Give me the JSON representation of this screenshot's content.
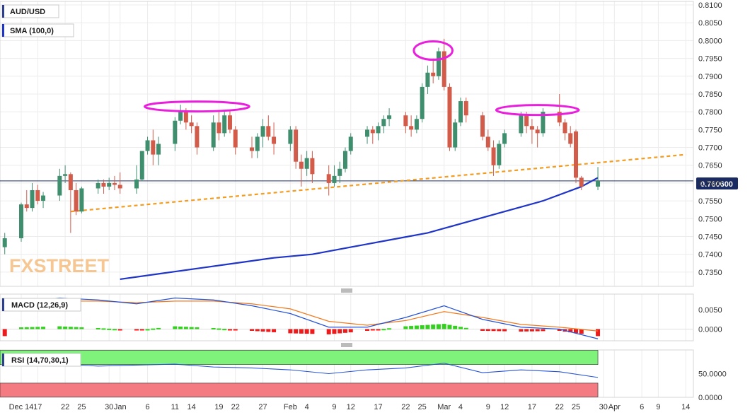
{
  "title": "AUD/USD",
  "overlay_label": "SMA (100,0)",
  "macd_label": "MACD (12,26,9)",
  "rsi_label": "RSI (14,70,30,1)",
  "watermark": "FXSTREET",
  "current_price_label": "0.760600",
  "colors": {
    "up": "#3f8f6e",
    "down": "#d25b4a",
    "sma": "#1f35c8",
    "trendline": "#f39c1f",
    "pattern_ellipse": "#ea1fdd",
    "macd_line": "#2553d6",
    "signal_line": "#f07a1e",
    "hist_up": "#33d11e",
    "hist_down": "#ec1c1c",
    "rsi_line": "#2553d6",
    "rsi_overbought": "#7ef27b",
    "rsi_oversold": "#f57b83",
    "price_line": "#1a2b63"
  },
  "price_axis_labels": [
    "0.8100",
    "0.8050",
    "0.8000",
    "0.7950",
    "0.7900",
    "0.7850",
    "0.7800",
    "0.7750",
    "0.7700",
    "0.7650",
    "0.7600",
    "0.7550",
    "0.7500",
    "0.7450",
    "0.7400",
    "0.7350"
  ],
  "macd_axis_labels": [
    "0.0050",
    "0.0000"
  ],
  "rsi_axis_labels": [
    "50.0000",
    "0.0000"
  ],
  "date_labels": [
    "Dec 14",
    "17",
    "22",
    "25",
    "30",
    "Jan",
    "6",
    "11",
    "14",
    "19",
    "22",
    "27",
    "Feb",
    "4",
    "9",
    "12",
    "17",
    "22",
    "25",
    "Mar",
    "4",
    "9",
    "12",
    "17",
    "22",
    "25",
    "30",
    "Apr",
    "6",
    "9",
    "14"
  ],
  "chart_data": {
    "type": "candlestick",
    "symbol": "AUD/USD",
    "timeframe": "daily",
    "ylim": [
      0.731,
      0.811
    ],
    "last_price": 0.7606,
    "candles": [
      {
        "date": "Dec 11",
        "open": 0.742,
        "high": 0.746,
        "low": 0.74,
        "close": 0.7445
      },
      {
        "date": "Dec 14",
        "open": 0.7445,
        "high": 0.7545,
        "low": 0.7435,
        "close": 0.754
      },
      {
        "date": "Dec 15",
        "open": 0.754,
        "high": 0.758,
        "low": 0.752,
        "close": 0.753
      },
      {
        "date": "Dec 16",
        "open": 0.753,
        "high": 0.76,
        "low": 0.752,
        "close": 0.758
      },
      {
        "date": "Dec 17",
        "open": 0.758,
        "high": 0.7595,
        "low": 0.754,
        "close": 0.755
      },
      {
        "date": "Dec 18",
        "open": 0.755,
        "high": 0.7575,
        "low": 0.753,
        "close": 0.7565
      },
      {
        "date": "Dec 21",
        "open": 0.7565,
        "high": 0.764,
        "low": 0.755,
        "close": 0.762
      },
      {
        "date": "Dec 22",
        "open": 0.762,
        "high": 0.765,
        "low": 0.76,
        "close": 0.7625
      },
      {
        "date": "Dec 23",
        "open": 0.7625,
        "high": 0.763,
        "low": 0.746,
        "close": 0.758
      },
      {
        "date": "Dec 24",
        "open": 0.758,
        "high": 0.76,
        "low": 0.751,
        "close": 0.752
      },
      {
        "date": "Dec 25",
        "open": 0.752,
        "high": 0.759,
        "low": 0.7515,
        "close": 0.7585
      },
      {
        "date": "Dec 28",
        "open": 0.7585,
        "high": 0.761,
        "low": 0.757,
        "close": 0.76
      },
      {
        "date": "Dec 29",
        "open": 0.76,
        "high": 0.761,
        "low": 0.757,
        "close": 0.759
      },
      {
        "date": "Dec 30",
        "open": 0.759,
        "high": 0.7615,
        "low": 0.758,
        "close": 0.76
      },
      {
        "date": "Dec 31",
        "open": 0.76,
        "high": 0.762,
        "low": 0.758,
        "close": 0.7595
      },
      {
        "date": "Jan 1",
        "open": 0.7595,
        "high": 0.763,
        "low": 0.757,
        "close": 0.7585
      },
      {
        "date": "Jan 4",
        "open": 0.7585,
        "high": 0.765,
        "low": 0.757,
        "close": 0.761
      },
      {
        "date": "Jan 5",
        "open": 0.761,
        "high": 0.769,
        "low": 0.7605,
        "close": 0.769
      },
      {
        "date": "Jan 6",
        "open": 0.769,
        "high": 0.773,
        "low": 0.768,
        "close": 0.772
      },
      {
        "date": "Jan 7",
        "open": 0.772,
        "high": 0.775,
        "low": 0.765,
        "close": 0.768
      },
      {
        "date": "Jan 8",
        "open": 0.768,
        "high": 0.773,
        "low": 0.765,
        "close": 0.771
      },
      {
        "date": "Jan 11",
        "open": 0.771,
        "high": 0.7785,
        "low": 0.769,
        "close": 0.7775
      },
      {
        "date": "Jan 12",
        "open": 0.7775,
        "high": 0.782,
        "low": 0.7765,
        "close": 0.78
      },
      {
        "date": "Jan 13",
        "open": 0.78,
        "high": 0.781,
        "low": 0.775,
        "close": 0.777
      },
      {
        "date": "Jan 14",
        "open": 0.777,
        "high": 0.779,
        "low": 0.774,
        "close": 0.776
      },
      {
        "date": "Jan 15",
        "open": 0.776,
        "high": 0.777,
        "low": 0.768,
        "close": 0.77
      },
      {
        "date": "Jan 18",
        "open": 0.77,
        "high": 0.779,
        "low": 0.769,
        "close": 0.777
      },
      {
        "date": "Jan 19",
        "open": 0.777,
        "high": 0.78,
        "low": 0.772,
        "close": 0.774
      },
      {
        "date": "Jan 20",
        "open": 0.774,
        "high": 0.78,
        "low": 0.773,
        "close": 0.779
      },
      {
        "date": "Jan 21",
        "open": 0.779,
        "high": 0.7805,
        "low": 0.774,
        "close": 0.775
      },
      {
        "date": "Jan 22",
        "open": 0.775,
        "high": 0.776,
        "low": 0.768,
        "close": 0.77
      },
      {
        "date": "Jan 25",
        "open": 0.77,
        "high": 0.773,
        "low": 0.767,
        "close": 0.769
      },
      {
        "date": "Jan 26",
        "open": 0.769,
        "high": 0.774,
        "low": 0.767,
        "close": 0.773
      },
      {
        "date": "Jan 27",
        "open": 0.773,
        "high": 0.778,
        "low": 0.77,
        "close": 0.776
      },
      {
        "date": "Jan 28",
        "open": 0.776,
        "high": 0.779,
        "low": 0.772,
        "close": 0.773
      },
      {
        "date": "Jan 29",
        "open": 0.773,
        "high": 0.777,
        "low": 0.768,
        "close": 0.771
      },
      {
        "date": "Feb 1",
        "open": 0.771,
        "high": 0.776,
        "low": 0.769,
        "close": 0.775
      },
      {
        "date": "Feb 2",
        "open": 0.775,
        "high": 0.776,
        "low": 0.764,
        "close": 0.766
      },
      {
        "date": "Feb 3",
        "open": 0.766,
        "high": 0.768,
        "low": 0.759,
        "close": 0.764
      },
      {
        "date": "Feb 4",
        "open": 0.764,
        "high": 0.769,
        "low": 0.762,
        "close": 0.767
      },
      {
        "date": "Feb 5",
        "open": 0.767,
        "high": 0.769,
        "low": 0.76,
        "close": 0.7625
      },
      {
        "date": "Feb 8",
        "open": 0.7625,
        "high": 0.765,
        "low": 0.7565,
        "close": 0.76
      },
      {
        "date": "Feb 9",
        "open": 0.76,
        "high": 0.765,
        "low": 0.759,
        "close": 0.762
      },
      {
        "date": "Feb 10",
        "open": 0.762,
        "high": 0.766,
        "low": 0.76,
        "close": 0.764
      },
      {
        "date": "Feb 11",
        "open": 0.764,
        "high": 0.77,
        "low": 0.763,
        "close": 0.769
      },
      {
        "date": "Feb 12",
        "open": 0.769,
        "high": 0.774,
        "low": 0.768,
        "close": 0.773
      },
      {
        "date": "Feb 15",
        "open": 0.773,
        "high": 0.776,
        "low": 0.771,
        "close": 0.775
      },
      {
        "date": "Feb 16",
        "open": 0.775,
        "high": 0.776,
        "low": 0.771,
        "close": 0.774
      },
      {
        "date": "Feb 17",
        "open": 0.774,
        "high": 0.777,
        "low": 0.772,
        "close": 0.776
      },
      {
        "date": "Feb 18",
        "open": 0.776,
        "high": 0.779,
        "low": 0.774,
        "close": 0.778
      },
      {
        "date": "Feb 19",
        "open": 0.778,
        "high": 0.781,
        "low": 0.776,
        "close": 0.779
      },
      {
        "date": "Feb 22",
        "open": 0.779,
        "high": 0.78,
        "low": 0.774,
        "close": 0.776
      },
      {
        "date": "Feb 23",
        "open": 0.776,
        "high": 0.779,
        "low": 0.773,
        "close": 0.775
      },
      {
        "date": "Feb 24",
        "open": 0.775,
        "high": 0.779,
        "low": 0.774,
        "close": 0.778
      },
      {
        "date": "Feb 25",
        "open": 0.778,
        "high": 0.788,
        "low": 0.777,
        "close": 0.787
      },
      {
        "date": "Feb 26",
        "open": 0.787,
        "high": 0.793,
        "low": 0.785,
        "close": 0.791
      },
      {
        "date": "Feb 27",
        "open": 0.791,
        "high": 0.795,
        "low": 0.788,
        "close": 0.79
      },
      {
        "date": "Feb 28",
        "open": 0.79,
        "high": 0.798,
        "low": 0.789,
        "close": 0.797
      },
      {
        "date": "Mar 1",
        "open": 0.797,
        "high": 0.8005,
        "low": 0.786,
        "close": 0.787
      },
      {
        "date": "Mar 2",
        "open": 0.787,
        "high": 0.788,
        "low": 0.769,
        "close": 0.77
      },
      {
        "date": "Mar 3",
        "open": 0.77,
        "high": 0.778,
        "low": 0.769,
        "close": 0.777
      },
      {
        "date": "Mar 4",
        "open": 0.777,
        "high": 0.784,
        "low": 0.776,
        "close": 0.783
      },
      {
        "date": "Mar 5",
        "open": 0.783,
        "high": 0.784,
        "low": 0.777,
        "close": 0.779
      },
      {
        "date": "Mar 8",
        "open": 0.779,
        "high": 0.78,
        "low": 0.772,
        "close": 0.773
      },
      {
        "date": "Mar 9",
        "open": 0.773,
        "high": 0.775,
        "low": 0.769,
        "close": 0.77
      },
      {
        "date": "Mar 10",
        "open": 0.77,
        "high": 0.772,
        "low": 0.762,
        "close": 0.765
      },
      {
        "date": "Mar 11",
        "open": 0.765,
        "high": 0.772,
        "low": 0.764,
        "close": 0.771
      },
      {
        "date": "Mar 12",
        "open": 0.771,
        "high": 0.775,
        "low": 0.77,
        "close": 0.774
      },
      {
        "date": "Mar 15",
        "open": 0.774,
        "high": 0.78,
        "low": 0.773,
        "close": 0.779
      },
      {
        "date": "Mar 16",
        "open": 0.779,
        "high": 0.78,
        "low": 0.774,
        "close": 0.776
      },
      {
        "date": "Mar 17",
        "open": 0.776,
        "high": 0.778,
        "low": 0.771,
        "close": 0.775
      },
      {
        "date": "Mar 18",
        "open": 0.775,
        "high": 0.776,
        "low": 0.77,
        "close": 0.774
      },
      {
        "date": "Mar 19",
        "open": 0.774,
        "high": 0.781,
        "low": 0.773,
        "close": 0.78
      },
      {
        "date": "Mar 22",
        "open": 0.78,
        "high": 0.785,
        "low": 0.776,
        "close": 0.777
      },
      {
        "date": "Mar 23",
        "open": 0.777,
        "high": 0.778,
        "low": 0.772,
        "close": 0.774
      },
      {
        "date": "Mar 24",
        "open": 0.774,
        "high": 0.776,
        "low": 0.77,
        "close": 0.771
      },
      {
        "date": "Mar 25",
        "open": 0.7745,
        "high": 0.775,
        "low": 0.76,
        "close": 0.7615
      },
      {
        "date": "Mar 26",
        "open": 0.7615,
        "high": 0.762,
        "low": 0.758,
        "close": 0.759
      },
      {
        "date": "Mar 29",
        "open": 0.759,
        "high": 0.7645,
        "low": 0.758,
        "close": 0.7606
      }
    ],
    "sma_100": [
      {
        "date": "Jan 1",
        "value": 0.733
      },
      {
        "date": "Jan 8",
        "value": 0.7345
      },
      {
        "date": "Jan 15",
        "value": 0.736
      },
      {
        "date": "Jan 22",
        "value": 0.7375
      },
      {
        "date": "Jan 29",
        "value": 0.739
      },
      {
        "date": "Feb 5",
        "value": 0.74
      },
      {
        "date": "Feb 12",
        "value": 0.742
      },
      {
        "date": "Feb 19",
        "value": 0.744
      },
      {
        "date": "Feb 26",
        "value": 0.746
      },
      {
        "date": "Mar 5",
        "value": 0.749
      },
      {
        "date": "Mar 12",
        "value": 0.752
      },
      {
        "date": "Mar 19",
        "value": 0.755
      },
      {
        "date": "Mar 26",
        "value": 0.759
      },
      {
        "date": "Mar 29",
        "value": 0.7615
      }
    ],
    "trendline": [
      {
        "date": "Dec 23",
        "value": 0.752
      },
      {
        "date": "Apr 14",
        "value": 0.768
      }
    ],
    "annotations": [
      "head-and-shoulders pattern: left shoulder (Jan), head (late Feb), right shoulder (mid Mar)"
    ],
    "macd": {
      "ylim": [
        -0.003,
        0.009
      ],
      "macd_line": [
        {
          "date": "Dec 14",
          "value": 0.007
        },
        {
          "date": "Dec 21",
          "value": 0.008
        },
        {
          "date": "Dec 28",
          "value": 0.0075
        },
        {
          "date": "Jan 4",
          "value": 0.0065
        },
        {
          "date": "Jan 11",
          "value": 0.008
        },
        {
          "date": "Jan 18",
          "value": 0.0075
        },
        {
          "date": "Jan 25",
          "value": 0.006
        },
        {
          "date": "Feb 1",
          "value": 0.004
        },
        {
          "date": "Feb 8",
          "value": 0.0005
        },
        {
          "date": "Feb 15",
          "value": 0.0005
        },
        {
          "date": "Feb 22",
          "value": 0.003
        },
        {
          "date": "Mar 1",
          "value": 0.006
        },
        {
          "date": "Mar 8",
          "value": 0.0025
        },
        {
          "date": "Mar 15",
          "value": 0.0005
        },
        {
          "date": "Mar 22",
          "value": 0.0
        },
        {
          "date": "Mar 29",
          "value": -0.0025
        }
      ],
      "signal_line": [
        {
          "date": "Dec 14",
          "value": 0.0065
        },
        {
          "date": "Dec 21",
          "value": 0.0072
        },
        {
          "date": "Dec 28",
          "value": 0.0072
        },
        {
          "date": "Jan 4",
          "value": 0.0068
        },
        {
          "date": "Jan 11",
          "value": 0.0072
        },
        {
          "date": "Jan 18",
          "value": 0.0072
        },
        {
          "date": "Jan 25",
          "value": 0.0065
        },
        {
          "date": "Feb 1",
          "value": 0.0052
        },
        {
          "date": "Feb 8",
          "value": 0.002
        },
        {
          "date": "Feb 15",
          "value": 0.001
        },
        {
          "date": "Feb 22",
          "value": 0.0022
        },
        {
          "date": "Mar 1",
          "value": 0.0045
        },
        {
          "date": "Mar 8",
          "value": 0.003
        },
        {
          "date": "Mar 15",
          "value": 0.0012
        },
        {
          "date": "Mar 22",
          "value": 0.0005
        },
        {
          "date": "Mar 29",
          "value": -0.0005
        }
      ],
      "histogram_trend": "positive through mid-Jan, negative late Jan to early Feb, positive mid/late Feb, negative in March"
    },
    "rsi": {
      "ylim": [
        0,
        100
      ],
      "levels": [
        70,
        30
      ],
      "values": [
        {
          "date": "Dec 14",
          "value": 68
        },
        {
          "date": "Dec 21",
          "value": 70
        },
        {
          "date": "Dec 28",
          "value": 66
        },
        {
          "date": "Jan 4",
          "value": 68
        },
        {
          "date": "Jan 11",
          "value": 70
        },
        {
          "date": "Jan 18",
          "value": 64
        },
        {
          "date": "Jan 25",
          "value": 62
        },
        {
          "date": "Feb 1",
          "value": 58
        },
        {
          "date": "Feb 8",
          "value": 50
        },
        {
          "date": "Feb 15",
          "value": 58
        },
        {
          "date": "Feb 22",
          "value": 62
        },
        {
          "date": "Mar 1",
          "value": 72
        },
        {
          "date": "Mar 8",
          "value": 52
        },
        {
          "date": "Mar 15",
          "value": 58
        },
        {
          "date": "Mar 22",
          "value": 54
        },
        {
          "date": "Mar 29",
          "value": 42
        }
      ]
    }
  }
}
